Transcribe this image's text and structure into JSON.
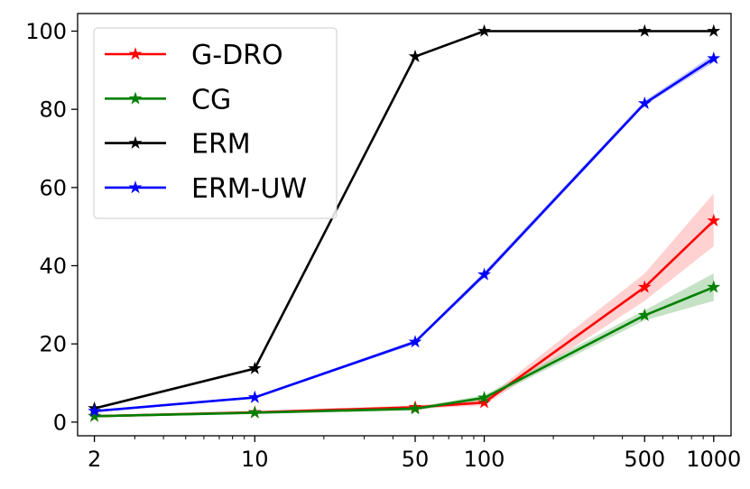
{
  "chart_data": {
    "type": "line",
    "title": "",
    "xlabel": "",
    "ylabel": "",
    "xscale": "log",
    "xlim": [
      1.69,
      1190
    ],
    "ylim": [
      -3.5,
      104.5
    ],
    "xticks": [
      2,
      10,
      50,
      100,
      500,
      1000
    ],
    "xtick_labels": [
      "2",
      "10",
      "50",
      "100",
      "500",
      "1000"
    ],
    "yticks": [
      0,
      20,
      40,
      60,
      80,
      100
    ],
    "ytick_labels": [
      "0",
      "20",
      "40",
      "60",
      "80",
      "100"
    ],
    "x": [
      2,
      10,
      50,
      100,
      500,
      1000
    ],
    "legend_position": "upper-left",
    "series": [
      {
        "name": "G-DRO",
        "color": "#ff0000",
        "band_color": "#ff9a9a",
        "marker": "star",
        "values": [
          1.5,
          2.5,
          3.8,
          5.0,
          34.5,
          51.5
        ],
        "lower": [
          1.2,
          2.2,
          3.3,
          4.3,
          31.0,
          45.0
        ],
        "upper": [
          1.8,
          2.8,
          4.3,
          5.7,
          38.0,
          58.5
        ]
      },
      {
        "name": "CG",
        "color": "#008000",
        "band_color": "#7fbf7f",
        "marker": "star",
        "values": [
          1.5,
          2.4,
          3.4,
          6.2,
          27.3,
          34.5
        ],
        "lower": [
          1.2,
          2.1,
          3.0,
          5.5,
          26.0,
          31.0
        ],
        "upper": [
          1.8,
          2.7,
          3.8,
          6.9,
          28.6,
          38.0
        ]
      },
      {
        "name": "ERM",
        "color": "#000000",
        "band_color": "#7f7f7f",
        "marker": "star",
        "values": [
          3.5,
          13.7,
          93.5,
          100.0,
          100.0,
          100.0
        ],
        "lower": [
          3.4,
          13.4,
          93.2,
          100.0,
          100.0,
          100.0
        ],
        "upper": [
          3.6,
          14.0,
          93.8,
          100.0,
          100.0,
          100.0
        ]
      },
      {
        "name": "ERM-UW",
        "color": "#0000ff",
        "band_color": "#7f7fff",
        "marker": "star",
        "values": [
          2.8,
          6.3,
          20.5,
          37.7,
          81.5,
          93.0
        ],
        "lower": [
          2.6,
          6.0,
          20.0,
          37.0,
          81.0,
          92.0
        ],
        "upper": [
          3.0,
          6.6,
          21.0,
          38.4,
          82.2,
          94.0
        ]
      }
    ]
  }
}
